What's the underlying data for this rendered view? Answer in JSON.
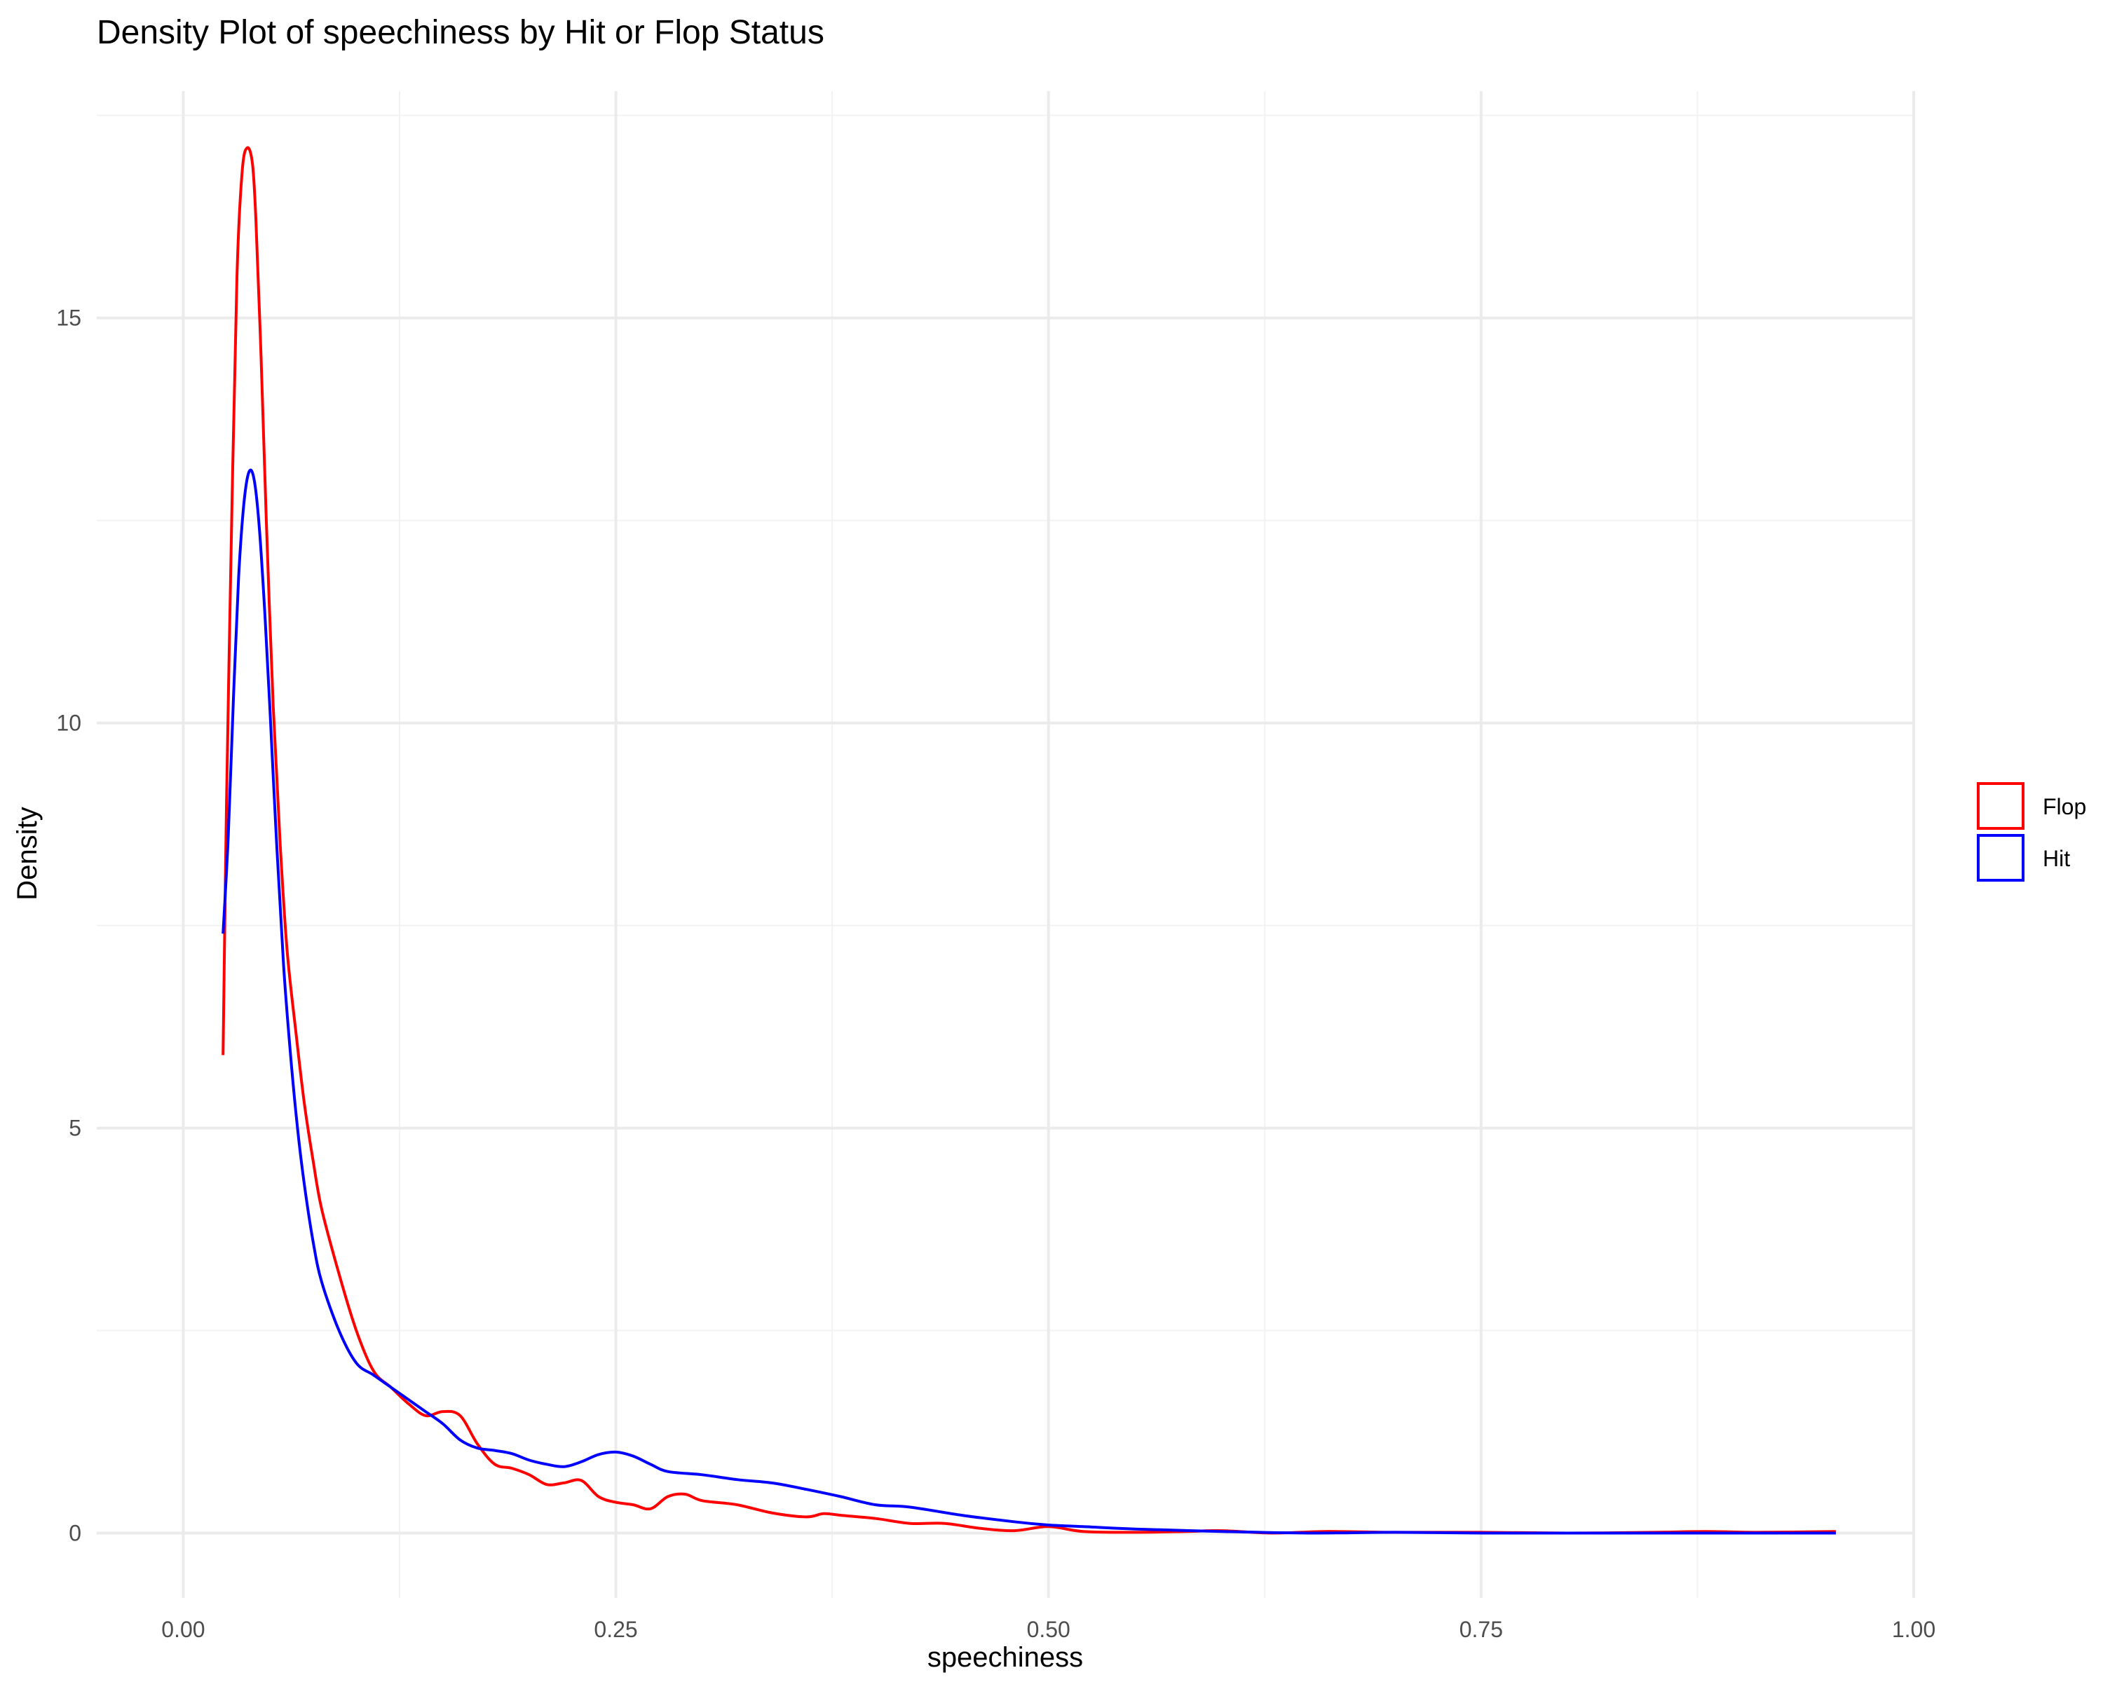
{
  "chart_data": {
    "type": "line",
    "title": "Density Plot of speechiness by Hit or Flop Status",
    "xlabel": "speechiness",
    "ylabel": "Density",
    "xlim": [
      -0.05,
      1.0
    ],
    "ylim": [
      -0.8,
      17.8
    ],
    "x_ticks": [
      0.0,
      0.25,
      0.5,
      0.75,
      1.0
    ],
    "x_tick_labels": [
      "0.00",
      "0.25",
      "0.50",
      "0.75",
      "1.00"
    ],
    "y_ticks": [
      0,
      5,
      10,
      15
    ],
    "y_tick_labels": [
      "0",
      "5",
      "10",
      "15"
    ],
    "grid": true,
    "legend_position": "right",
    "series": [
      {
        "name": "Flop",
        "color": "#ff0000",
        "x": [
          0.023,
          0.025,
          0.028,
          0.031,
          0.034,
          0.037,
          0.04,
          0.042,
          0.045,
          0.048,
          0.052,
          0.056,
          0.06,
          0.065,
          0.07,
          0.075,
          0.08,
          0.09,
          0.1,
          0.11,
          0.12,
          0.13,
          0.14,
          0.15,
          0.16,
          0.17,
          0.18,
          0.19,
          0.2,
          0.21,
          0.22,
          0.23,
          0.24,
          0.25,
          0.26,
          0.27,
          0.28,
          0.29,
          0.3,
          0.32,
          0.34,
          0.36,
          0.37,
          0.38,
          0.4,
          0.42,
          0.44,
          0.46,
          0.48,
          0.5,
          0.52,
          0.55,
          0.58,
          0.6,
          0.63,
          0.66,
          0.7,
          0.75,
          0.8,
          0.85,
          0.88,
          0.91,
          0.955
        ],
        "values": [
          5.9,
          9.0,
          12.5,
          15.5,
          16.8,
          17.1,
          16.9,
          16.2,
          14.5,
          12.5,
          10.2,
          8.5,
          7.2,
          6.2,
          5.3,
          4.6,
          4.0,
          3.2,
          2.5,
          2.0,
          1.8,
          1.6,
          1.45,
          1.5,
          1.45,
          1.1,
          0.85,
          0.8,
          0.72,
          0.6,
          0.62,
          0.65,
          0.45,
          0.38,
          0.35,
          0.3,
          0.45,
          0.48,
          0.4,
          0.35,
          0.25,
          0.2,
          0.24,
          0.22,
          0.18,
          0.12,
          0.12,
          0.06,
          0.03,
          0.08,
          0.02,
          0.01,
          0.02,
          0.03,
          0.0,
          0.02,
          0.01,
          0.01,
          0.0,
          0.01,
          0.02,
          0.01,
          0.02
        ]
      },
      {
        "name": "Hit",
        "color": "#0000ff",
        "x": [
          0.023,
          0.026,
          0.029,
          0.032,
          0.035,
          0.038,
          0.041,
          0.044,
          0.047,
          0.05,
          0.054,
          0.058,
          0.062,
          0.066,
          0.07,
          0.075,
          0.08,
          0.09,
          0.1,
          0.11,
          0.12,
          0.13,
          0.14,
          0.15,
          0.16,
          0.17,
          0.18,
          0.19,
          0.2,
          0.21,
          0.22,
          0.23,
          0.24,
          0.25,
          0.26,
          0.27,
          0.28,
          0.3,
          0.32,
          0.34,
          0.36,
          0.38,
          0.4,
          0.42,
          0.45,
          0.48,
          0.5,
          0.52,
          0.55,
          0.6,
          0.65,
          0.7,
          0.75,
          0.8,
          0.85,
          0.9,
          0.955
        ],
        "values": [
          7.4,
          8.6,
          10.3,
          11.8,
          12.7,
          13.1,
          13.0,
          12.4,
          11.4,
          10.2,
          8.5,
          7.0,
          5.9,
          5.0,
          4.3,
          3.6,
          3.1,
          2.5,
          2.1,
          1.95,
          1.8,
          1.65,
          1.5,
          1.35,
          1.15,
          1.05,
          1.02,
          0.98,
          0.9,
          0.85,
          0.82,
          0.88,
          0.97,
          1.0,
          0.95,
          0.85,
          0.76,
          0.72,
          0.66,
          0.62,
          0.54,
          0.45,
          0.35,
          0.32,
          0.22,
          0.14,
          0.1,
          0.08,
          0.05,
          0.02,
          0.0,
          0.01,
          0.0,
          0.0,
          0.0,
          0.0,
          0.0
        ]
      }
    ]
  }
}
